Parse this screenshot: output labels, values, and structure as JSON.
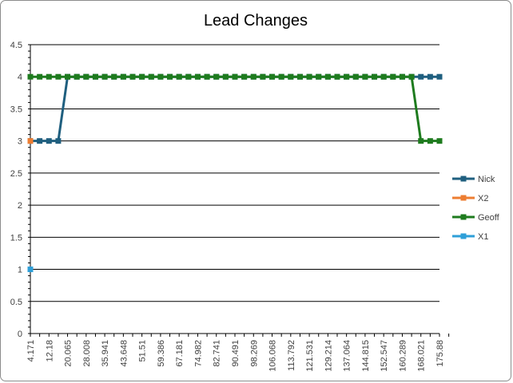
{
  "chart_data": {
    "type": "line",
    "title": "Lead Changes",
    "xlabel": "",
    "ylabel": "",
    "ylim": [
      0,
      4.5
    ],
    "yticks": [
      "0",
      "0.5",
      "1",
      "1.5",
      "2",
      "2.5",
      "3",
      "3.5",
      "4",
      "4.5"
    ],
    "grid": true,
    "legend_position": "right",
    "x_labels": [
      "4.171",
      "12.18",
      "20.065",
      "28.008",
      "35.941",
      "43.648",
      "51.51",
      "59.386",
      "67.181",
      "74.982",
      "82.741",
      "90.491",
      "98.269",
      "106.068",
      "113.792",
      "121.531",
      "129.214",
      "137.064",
      "144.815",
      "152.547",
      "160.289",
      "168.021",
      "175.88"
    ],
    "series": [
      {
        "name": "Nick",
        "color": "#1f5f7f",
        "start": 0,
        "values": [
          3,
          3,
          3,
          3,
          4,
          4,
          4,
          4,
          4,
          4,
          4,
          4,
          4,
          4,
          4,
          4,
          4,
          4,
          4,
          4,
          4,
          4,
          4,
          4,
          4,
          4,
          4,
          4,
          4,
          4,
          4,
          4,
          4,
          4,
          4,
          4,
          4,
          4,
          4,
          4,
          4,
          4,
          4,
          4,
          4
        ]
      },
      {
        "name": "X2",
        "color": "#ed7d31",
        "start": 0,
        "values": [
          3
        ]
      },
      {
        "name": "Geoff",
        "color": "#1e7b1e",
        "start": 0,
        "values": [
          4,
          4,
          4,
          4,
          4,
          4,
          4,
          4,
          4,
          4,
          4,
          4,
          4,
          4,
          4,
          4,
          4,
          4,
          4,
          4,
          4,
          4,
          4,
          4,
          4,
          4,
          4,
          4,
          4,
          4,
          4,
          4,
          4,
          4,
          4,
          4,
          4,
          4,
          4,
          4,
          4,
          4,
          3,
          3,
          3
        ]
      },
      {
        "name": "X1",
        "color": "#2e9fd8",
        "start": 0,
        "values": [
          1
        ]
      }
    ]
  }
}
